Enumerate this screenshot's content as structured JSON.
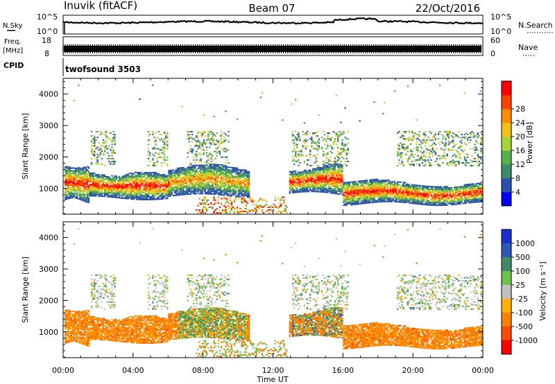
{
  "header": {
    "station": "Inuvik (fitACF)",
    "beam": "Beam 07",
    "date": "22/Oct/2016"
  },
  "top_panels": {
    "nsky_label": "N.Sky",
    "nsky_ticks": [
      "10^5",
      "10^0"
    ],
    "nsearch_label": "N.Search",
    "nsearch_ticks": [
      "10^5",
      "10^0"
    ],
    "freq_label": "Freq.",
    "freq_unit": "[MHz]",
    "freq_ticks": [
      "18",
      "8"
    ],
    "nave_label": "Nave",
    "nave_ticks": [
      "60",
      "0"
    ],
    "cpid_label": "CPID",
    "cpid_value": "twofsound 3503"
  },
  "chart_data": [
    {
      "type": "heatmap",
      "panel": "power",
      "ylabel": "Slant Range [km]",
      "ylim": [
        180,
        4500
      ],
      "yticks": [
        1000,
        2000,
        3000,
        4000
      ],
      "x_ticks": [
        "00:00",
        "04:00",
        "08:00",
        "12:00",
        "16:00",
        "20:00",
        "00:00"
      ],
      "colorbar": {
        "label": "Power [dB]",
        "ticks": [
          "4",
          "8",
          "12",
          "16",
          "20",
          "24",
          "28"
        ],
        "colors": [
          "#0000ff",
          "#2b4fb0",
          "#3e8a6a",
          "#55b04b",
          "#a8d63a",
          "#f2c21a",
          "#ff8c00",
          "#ff4000",
          "#ff0000"
        ]
      },
      "echo_bands_km": [
        {
          "from_h": 0.0,
          "to_h": 1.5,
          "range": [
            600,
            1700
          ],
          "level": "high"
        },
        {
          "from_h": 1.5,
          "to_h": 6.0,
          "range": [
            700,
            1500
          ],
          "level": "high"
        },
        {
          "from_h": 6.0,
          "to_h": 10.5,
          "range": [
            800,
            1600
          ],
          "level": "mixed"
        },
        {
          "from_h": 13.0,
          "to_h": 16.0,
          "range": [
            800,
            1600
          ],
          "level": "mixed"
        },
        {
          "from_h": 16.0,
          "to_h": 24.0,
          "range": [
            500,
            1200
          ],
          "level": "high"
        }
      ]
    },
    {
      "type": "heatmap",
      "panel": "velocity",
      "ylabel": "Slant Range [km]",
      "ylim": [
        180,
        4500
      ],
      "yticks": [
        1000,
        2000,
        3000,
        4000
      ],
      "x_ticks": [
        "00:00",
        "04:00",
        "08:00",
        "12:00",
        "16:00",
        "20:00",
        "00:00"
      ],
      "xlabel": "Time UT",
      "colorbar": {
        "label": "Velocity [m s⁻¹]",
        "ticks": [
          "1000",
          "500",
          "100",
          "25",
          "-25",
          "-100",
          "-500",
          "-1000"
        ],
        "colors": [
          "#1a2fcf",
          "#2e58b8",
          "#3f8a67",
          "#6cc24a",
          "#c0c0c0",
          "#ffb000",
          "#ff8000",
          "#ff4a00",
          "#ff0000"
        ]
      }
    }
  ]
}
